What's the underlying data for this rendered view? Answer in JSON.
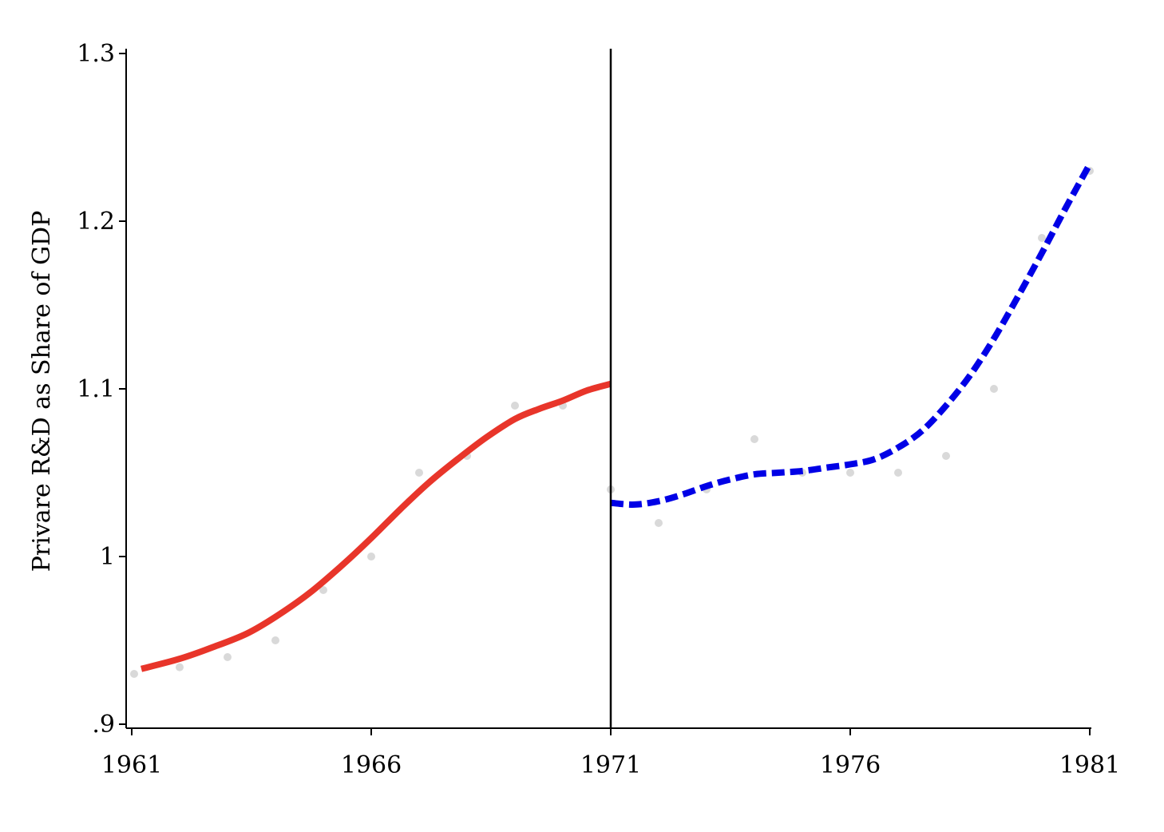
{
  "chart_data": {
    "type": "line",
    "xlabel": "",
    "ylabel": "Privare R&D as Share of GDP",
    "xlim": [
      1961,
      1981
    ],
    "ylim": [
      0.9,
      1.3
    ],
    "x_ticks": [
      1961,
      1966,
      1971,
      1976,
      1981
    ],
    "x_tick_labels": [
      "1961",
      "1966",
      "1971",
      "1976",
      "1981"
    ],
    "y_ticks": [
      0.9,
      1.0,
      1.1,
      1.2,
      1.3
    ],
    "y_tick_labels": [
      ".9",
      "1",
      "1.1",
      "1.2",
      "1.3"
    ],
    "grid": false,
    "legend": "none",
    "vertical_line": {
      "x": 1971,
      "color": "#000000"
    },
    "scatter_points": {
      "color": "#d9d9d9",
      "points": [
        [
          1961.05,
          0.93
        ],
        [
          1962,
          0.934
        ],
        [
          1963,
          0.94
        ],
        [
          1964,
          0.95
        ],
        [
          1965,
          0.98
        ],
        [
          1966,
          1.0
        ],
        [
          1967,
          1.05
        ],
        [
          1968,
          1.06
        ],
        [
          1969,
          1.09
        ],
        [
          1970,
          1.09
        ],
        [
          1971,
          1.04
        ],
        [
          1972,
          1.02
        ],
        [
          1973,
          1.04
        ],
        [
          1974,
          1.07
        ],
        [
          1975,
          1.05
        ],
        [
          1976,
          1.05
        ],
        [
          1977,
          1.05
        ],
        [
          1978,
          1.06
        ],
        [
          1979,
          1.1
        ],
        [
          1980,
          1.19
        ],
        [
          1981,
          1.23
        ]
      ]
    },
    "series": [
      {
        "color": "#e8352a",
        "style": "solid",
        "x": [
          1961.2,
          1962,
          1962.7,
          1963.4,
          1964,
          1964.7,
          1965.4,
          1966,
          1966.6,
          1967.2,
          1967.8,
          1968.4,
          1969,
          1969.5,
          1970,
          1970.5,
          1971
        ],
        "y": [
          0.933,
          0.939,
          0.946,
          0.954,
          0.964,
          0.978,
          0.995,
          1.011,
          1.028,
          1.044,
          1.058,
          1.071,
          1.082,
          1.088,
          1.093,
          1.099,
          1.103
        ]
      },
      {
        "color": "#0000e6",
        "style": "dashed",
        "x": [
          1971,
          1971.5,
          1972,
          1972.5,
          1973,
          1973.5,
          1974,
          1974.5,
          1975,
          1975.5,
          1976,
          1976.5,
          1977,
          1977.5,
          1978,
          1978.5,
          1979,
          1979.5,
          1980,
          1980.5,
          1981
        ],
        "y": [
          1.032,
          1.031,
          1.033,
          1.037,
          1.042,
          1.046,
          1.049,
          1.05,
          1.051,
          1.053,
          1.055,
          1.058,
          1.065,
          1.075,
          1.09,
          1.108,
          1.13,
          1.155,
          1.181,
          1.208,
          1.234
        ]
      }
    ]
  }
}
